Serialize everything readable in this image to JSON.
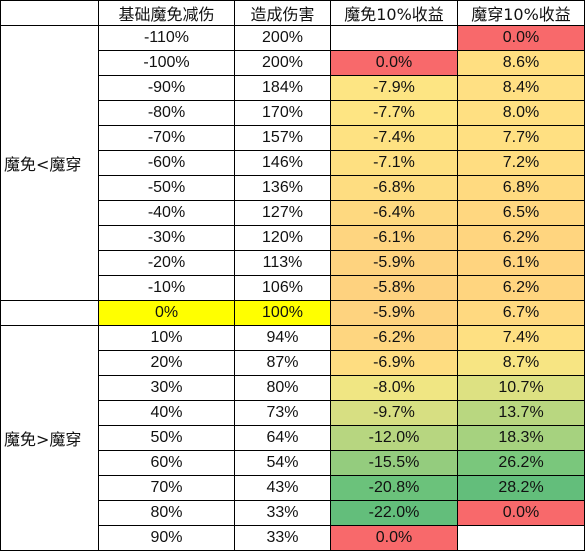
{
  "headers": [
    "基础魔免减伤",
    "造成伤害",
    "魔免10%收益",
    "魔穿10%收益"
  ],
  "groups": {
    "upper": "魔免<魔穿",
    "lower": "魔免>魔穿"
  },
  "colors": {
    "red": "#f8696b",
    "highlight_yellow": "#ffff00"
  },
  "rows": [
    {
      "reduction": "-110%",
      "damage": "200%",
      "immune": "",
      "pen": "0.0%",
      "immune_bg": "#ffffff",
      "pen_bg": "#f8696b"
    },
    {
      "reduction": "-100%",
      "damage": "200%",
      "immune": "0.0%",
      "pen": "8.6%",
      "immune_bg": "#f8696b",
      "pen_bg": "#ffdf81"
    },
    {
      "reduction": "-90%",
      "damage": "184%",
      "immune": "-7.9%",
      "pen": "8.4%",
      "immune_bg": "#fde583",
      "pen_bg": "#ffe083"
    },
    {
      "reduction": "-80%",
      "damage": "170%",
      "immune": "-7.7%",
      "pen": "8.0%",
      "immune_bg": "#fee583",
      "pen_bg": "#ffe082"
    },
    {
      "reduction": "-70%",
      "damage": "157%",
      "immune": "-7.4%",
      "pen": "7.7%",
      "immune_bg": "#fee282",
      "pen_bg": "#ffe082"
    },
    {
      "reduction": "-60%",
      "damage": "146%",
      "immune": "-7.1%",
      "pen": "7.2%",
      "immune_bg": "#fee081",
      "pen_bg": "#ffdd81"
    },
    {
      "reduction": "-50%",
      "damage": "136%",
      "immune": "-6.8%",
      "pen": "6.8%",
      "immune_bg": "#fedd81",
      "pen_bg": "#ffda80"
    },
    {
      "reduction": "-40%",
      "damage": "127%",
      "immune": "-6.4%",
      "pen": "6.5%",
      "immune_bg": "#fed980",
      "pen_bg": "#ffd780"
    },
    {
      "reduction": "-30%",
      "damage": "120%",
      "immune": "-6.1%",
      "pen": "6.2%",
      "immune_bg": "#fed580",
      "pen_bg": "#ffd57f"
    },
    {
      "reduction": "-20%",
      "damage": "113%",
      "immune": "-5.9%",
      "pen": "6.1%",
      "immune_bg": "#fed37f",
      "pen_bg": "#ffd47f"
    },
    {
      "reduction": "-10%",
      "damage": "106%",
      "immune": "-5.8%",
      "pen": "6.2%",
      "immune_bg": "#fed27f",
      "pen_bg": "#ffd57f"
    },
    {
      "reduction": "0%",
      "damage": "100%",
      "immune": "-5.9%",
      "pen": "6.7%",
      "immune_bg": "#fed37f",
      "pen_bg": "#ffd980",
      "hl": true
    },
    {
      "reduction": "10%",
      "damage": "94%",
      "immune": "-6.2%",
      "pen": "7.4%",
      "immune_bg": "#fed680",
      "pen_bg": "#fee082"
    },
    {
      "reduction": "20%",
      "damage": "87%",
      "immune": "-6.9%",
      "pen": "8.7%",
      "immune_bg": "#fedd81",
      "pen_bg": "#f7e583"
    },
    {
      "reduction": "30%",
      "damage": "80%",
      "immune": "-8.0%",
      "pen": "10.7%",
      "immune_bg": "#f0e683",
      "pen_bg": "#dde182"
    },
    {
      "reduction": "40%",
      "damage": "73%",
      "immune": "-9.7%",
      "pen": "13.7%",
      "immune_bg": "#d7df82",
      "pen_bg": "#b9d780"
    },
    {
      "reduction": "50%",
      "damage": "64%",
      "immune": "-12.0%",
      "pen": "18.3%",
      "immune_bg": "#b7d680",
      "pen_bg": "#a6d27f"
    },
    {
      "reduction": "60%",
      "damage": "54%",
      "immune": "-15.5%",
      "pen": "26.2%",
      "immune_bg": "#94cc7e",
      "pen_bg": "#7ac77c"
    },
    {
      "reduction": "70%",
      "damage": "43%",
      "immune": "-20.8%",
      "pen": "28.2%",
      "immune_bg": "#6bc27b",
      "pen_bg": "#63be7b"
    },
    {
      "reduction": "80%",
      "damage": "33%",
      "immune": "-22.0%",
      "pen": "0.0%",
      "immune_bg": "#63be7b",
      "pen_bg": "#f8696b"
    },
    {
      "reduction": "90%",
      "damage": "33%",
      "immune": "0.0%",
      "pen": "",
      "immune_bg": "#f8696b",
      "pen_bg": "#ffffff"
    }
  ]
}
